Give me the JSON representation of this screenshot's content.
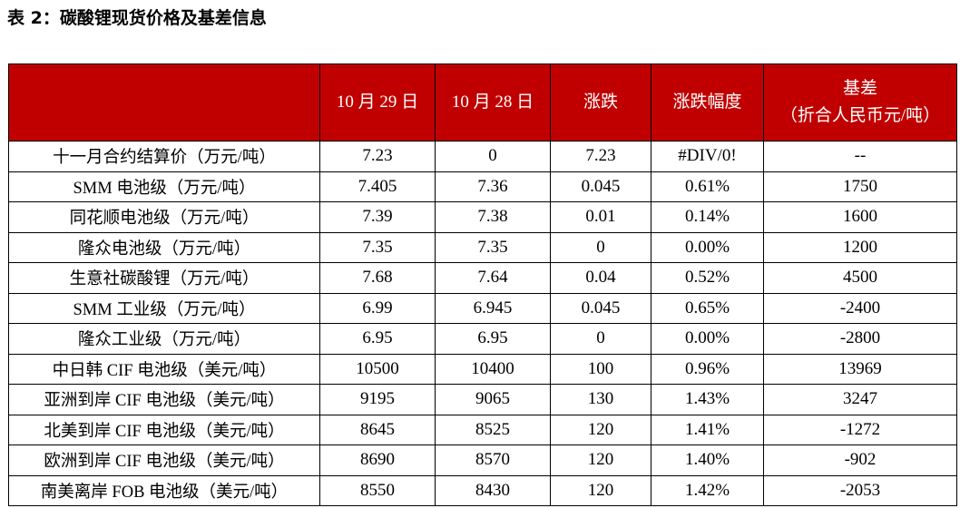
{
  "caption": "表 2：碳酸锂现货价格及基差信息",
  "header": {
    "label": "",
    "date1": "10 月 29 日",
    "date2": "10 月 28 日",
    "change": "涨跌",
    "change_pct": "涨跌幅度",
    "basis_line1": "基差",
    "basis_line2": "（折合人民币元/吨）"
  },
  "rows": [
    {
      "label": "十一月合约结算价（万元/吨）",
      "d1": "7.23",
      "d2": "0",
      "chg": "7.23",
      "pct": "#DIV/0!",
      "basis": "--"
    },
    {
      "label": "SMM 电池级（万元/吨）",
      "d1": "7.405",
      "d2": "7.36",
      "chg": "0.045",
      "pct": "0.61%",
      "basis": "1750"
    },
    {
      "label": "同花顺电池级（万元/吨）",
      "d1": "7.39",
      "d2": "7.38",
      "chg": "0.01",
      "pct": "0.14%",
      "basis": "1600"
    },
    {
      "label": "隆众电池级（万元/吨）",
      "d1": "7.35",
      "d2": "7.35",
      "chg": "0",
      "pct": "0.00%",
      "basis": "1200"
    },
    {
      "label": "生意社碳酸锂（万元/吨）",
      "d1": "7.68",
      "d2": "7.64",
      "chg": "0.04",
      "pct": "0.52%",
      "basis": "4500"
    },
    {
      "label": "SMM 工业级（万元/吨）",
      "d1": "6.99",
      "d2": "6.945",
      "chg": "0.045",
      "pct": "0.65%",
      "basis": "-2400"
    },
    {
      "label": "隆众工业级（万元/吨）",
      "d1": "6.95",
      "d2": "6.95",
      "chg": "0",
      "pct": "0.00%",
      "basis": "-2800"
    },
    {
      "label": "中日韩 CIF 电池级（美元/吨）",
      "d1": "10500",
      "d2": "10400",
      "chg": "100",
      "pct": "0.96%",
      "basis": "13969"
    },
    {
      "label": "亚洲到岸 CIF 电池级（美元/吨）",
      "d1": "9195",
      "d2": "9065",
      "chg": "130",
      "pct": "1.43%",
      "basis": "3247"
    },
    {
      "label": "北美到岸 CIF 电池级（美元/吨）",
      "d1": "8645",
      "d2": "8525",
      "chg": "120",
      "pct": "1.41%",
      "basis": "-1272"
    },
    {
      "label": "欧洲到岸 CIF 电池级（美元/吨）",
      "d1": "8690",
      "d2": "8570",
      "chg": "120",
      "pct": "1.40%",
      "basis": "-902"
    },
    {
      "label": "南美离岸 FOB 电池级（美元/吨）",
      "d1": "8550",
      "d2": "8430",
      "chg": "120",
      "pct": "1.42%",
      "basis": "-2053"
    }
  ],
  "colors": {
    "header_bg": "#c00000",
    "header_text": "#ffffff",
    "border": "#000000"
  }
}
